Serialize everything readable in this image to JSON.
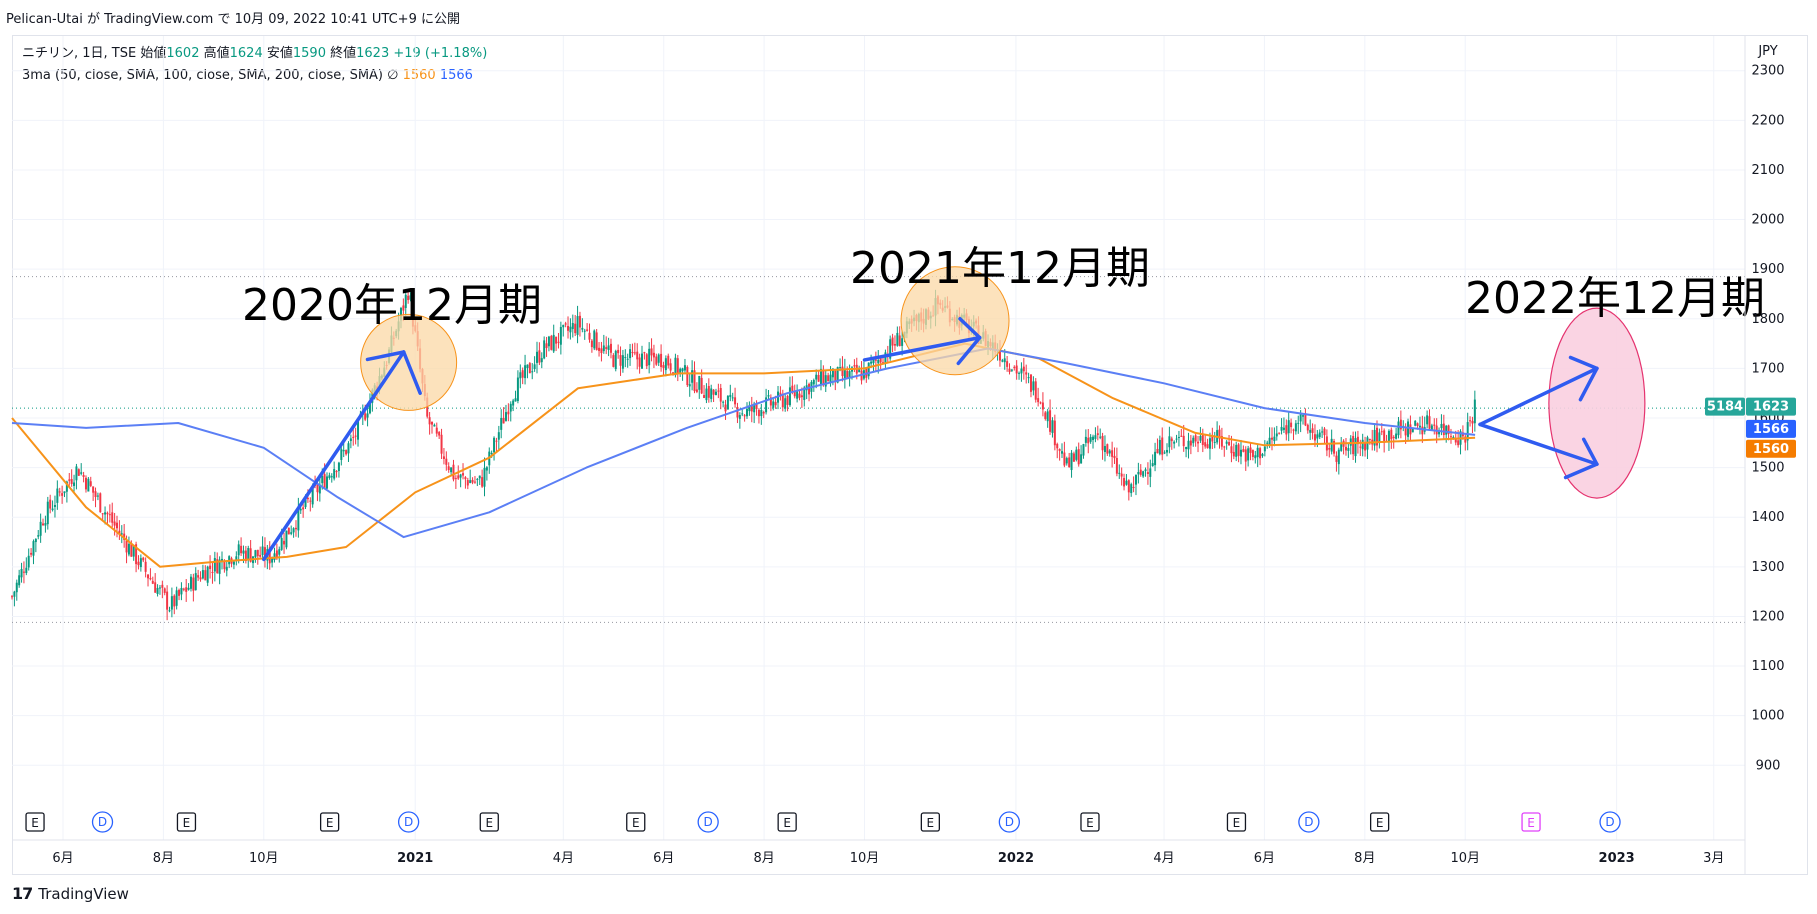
{
  "header": {
    "caption": "Pelican-Utai が TradingView.com で 10月 09, 2022 10:41 UTC+9 に公開"
  },
  "legend": {
    "line1_prefix": "ニチリン, 1日, TSE",
    "open_label": "始値",
    "open_value": "1602",
    "high_label": "高値",
    "high_value": "1624",
    "low_label": "安値",
    "low_value": "1590",
    "close_label": "終値",
    "close_value": "1623",
    "change": "+19 (+1.18%)",
    "line2_prefix": "3ma (50, close, SMA, 100, close, SMA, 200, close, SMA)",
    "line2_symbol": "∅",
    "ma_orange_value": "1560",
    "ma_blue_value": "1566"
  },
  "currency": "JPY",
  "footer": {
    "logo_mark": "17",
    "logo_text": "TradingView"
  },
  "colors": {
    "up": "#089981",
    "down": "#f23645",
    "ma50": "#f7931a",
    "ma100": "#5b7ff5",
    "arrow": "#2f5bf0",
    "circle_fill": "#fbd8a6",
    "ellipse_fill": "#f9cfe0",
    "ellipse_stroke": "#e5336f"
  },
  "chart_data": {
    "type": "line",
    "title": "ニチリン, 1日, TSE",
    "y_axis": {
      "ticks": [
        900,
        1000,
        1100,
        1200,
        1300,
        1400,
        1500,
        1600,
        1700,
        1800,
        1900,
        2000,
        2100,
        2200,
        2300
      ],
      "range": [
        830,
        2370
      ]
    },
    "x_axis": {
      "ticks": [
        "6月",
        "8月",
        "10月",
        "2021",
        "4月",
        "6月",
        "8月",
        "10月",
        "2022",
        "4月",
        "6月",
        "8月",
        "10月",
        "2023",
        "3月"
      ],
      "range": [
        "2020-05-01",
        "2023-03-20"
      ]
    },
    "price_badges": {
      "volume": "5184",
      "last": "1623",
      "ma_blue": "1566",
      "ma_orange": "1560"
    },
    "horizontal_levels": [
      1885,
      1620,
      1188
    ],
    "series": [
      {
        "name": "price",
        "x": [
          "2020-05-01",
          "2020-05-20",
          "2020-06-10",
          "2020-06-25",
          "2020-07-15",
          "2020-08-05",
          "2020-08-25",
          "2020-09-15",
          "2020-10-05",
          "2020-10-30",
          "2020-11-25",
          "2020-12-15",
          "2020-12-28",
          "2021-01-08",
          "2021-01-25",
          "2021-02-10",
          "2021-03-01",
          "2021-03-20",
          "2021-04-10",
          "2021-05-01",
          "2021-06-01",
          "2021-06-25",
          "2021-07-20",
          "2021-08-15",
          "2021-09-05",
          "2021-10-01",
          "2021-10-25",
          "2021-11-15",
          "2021-12-01",
          "2021-12-20",
          "2022-01-15",
          "2022-02-01",
          "2022-02-20",
          "2022-03-10",
          "2022-04-01",
          "2022-05-01",
          "2022-05-25",
          "2022-06-20",
          "2022-07-15",
          "2022-08-15",
          "2022-09-10",
          "2022-09-30",
          "2022-10-07"
        ],
        "values": [
          1240,
          1400,
          1500,
          1420,
          1320,
          1220,
          1290,
          1330,
          1320,
          1440,
          1560,
          1720,
          1860,
          1600,
          1480,
          1470,
          1650,
          1740,
          1790,
          1720,
          1720,
          1660,
          1610,
          1640,
          1680,
          1690,
          1770,
          1830,
          1790,
          1740,
          1650,
          1500,
          1570,
          1450,
          1550,
          1560,
          1520,
          1600,
          1530,
          1570,
          1590,
          1560,
          1623
        ]
      },
      {
        "name": "",
        "x": [
          "2020-05-01",
          "2020-06-15",
          "2020-07-30",
          "2020-09-01",
          "2020-10-15",
          "2020-11-20",
          "2021-01-01",
          "2021-02-15",
          "2021-04-10",
          "2021-06-10",
          "2021-08-01",
          "2021-10-01",
          "2021-12-01",
          "2022-01-15",
          "2022-03-01",
          "2022-04-20",
          "2022-06-01",
          "2022-08-01",
          "2022-10-07"
        ],
        "values": [
          1600,
          1420,
          1300,
          1310,
          1320,
          1340,
          1450,
          1520,
          1660,
          1690,
          1690,
          1700,
          1750,
          1720,
          1640,
          1570,
          1545,
          1550,
          1560
        ]
      },
      {
        "name": "",
        "x": [
          "2020-05-01",
          "2020-06-15",
          "2020-08-10",
          "2020-10-01",
          "2020-11-15",
          "2020-12-25",
          "2021-02-15",
          "2021-04-15",
          "2021-06-15",
          "2021-08-15",
          "2021-10-15",
          "2021-12-15",
          "2022-02-01",
          "2022-04-01",
          "2022-06-01",
          "2022-08-01",
          "2022-10-07"
        ],
        "values": [
          1590,
          1580,
          1590,
          1540,
          1440,
          1360,
          1410,
          1500,
          1580,
          1650,
          1700,
          1740,
          1710,
          1670,
          1620,
          1590,
          1566
        ]
      }
    ],
    "earnings_markers": [
      "2020-05-15",
      "2020-08-15",
      "2020-11-10",
      "2021-02-15",
      "2021-05-15",
      "2021-08-15",
      "2021-11-10",
      "2022-02-15",
      "2022-05-15",
      "2022-08-10",
      "2022-11-10"
    ],
    "dividend_markers": [
      "2020-06-25",
      "2020-12-28",
      "2021-06-28",
      "2021-12-28",
      "2022-06-28",
      "2022-12-28"
    ],
    "annotations": [
      {
        "text": "2020年12月期"
      },
      {
        "text": "2021年12月期"
      },
      {
        "text": "2022年12月期"
      }
    ]
  }
}
